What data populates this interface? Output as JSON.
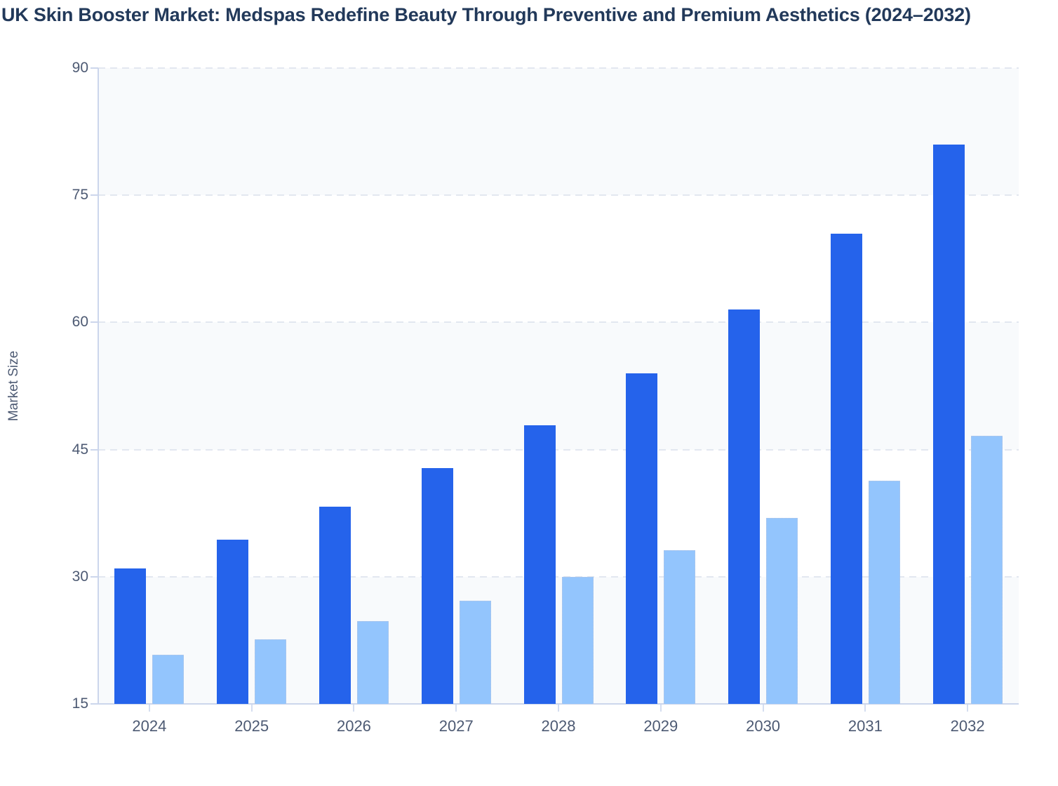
{
  "chart_data": {
    "type": "bar",
    "title": "UK Skin Booster Market: Medspas Redefine Beauty Through Preventive and Premium Aesthetics (2024–2032)",
    "xlabel": "",
    "ylabel": "Market Size",
    "categories": [
      "2024",
      "2025",
      "2026",
      "2027",
      "2028",
      "2029",
      "2030",
      "2031",
      "2032"
    ],
    "series": [
      {
        "id": "series-1",
        "color": "#2563eb",
        "values": [
          31.0,
          34.4,
          38.3,
          42.8,
          47.9,
          54.0,
          61.5,
          70.5,
          81.0
        ]
      },
      {
        "id": "series-2",
        "color": "#93c5fd",
        "values": [
          20.8,
          22.6,
          24.8,
          27.2,
          30.0,
          33.1,
          36.9,
          41.3,
          46.6
        ]
      }
    ],
    "ylim": [
      15,
      90
    ],
    "yticks": [
      15,
      30,
      45,
      60,
      75,
      90
    ],
    "grid": "horizontal-dashed",
    "legend_position": "none",
    "plot_bands": "alternating-from-bottom"
  },
  "colors": {
    "series1_bar": "#2563eb",
    "series2_bar": "#93c5fd",
    "band_fill": "#f8fafc",
    "gridline": "#e2e7f0",
    "axis": "#ccd6ec",
    "tick_label_text": "#4d5a73",
    "title_text": "#22395a"
  }
}
